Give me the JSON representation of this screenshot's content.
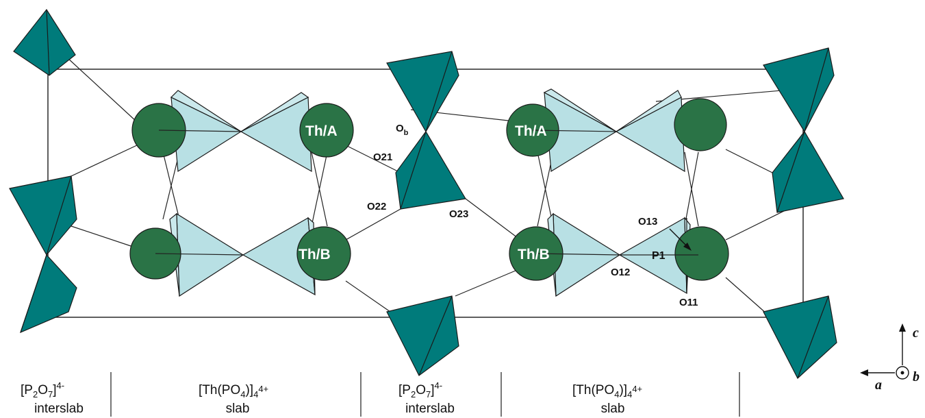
{
  "colors": {
    "pyrophosphate_tetrahedron": "#007b7b",
    "phosphate_tetrahedron": "#b8e0e4",
    "thorium_atom": "#2a7346",
    "outline": "#1a1a1a",
    "atom_label": "#ffffff"
  },
  "atoms": {
    "th_a_left": "Th/A",
    "th_b_left": "Th/B",
    "th_a_right": "Th/A",
    "th_b_right": "Th/B",
    "p1": "P1"
  },
  "oxygen_labels": {
    "ob_main": "O",
    "ob_sub": "b",
    "o21": "O21",
    "o22": "O22",
    "o23": "O23",
    "o13": "O13",
    "o12": "O12",
    "o11": "O11"
  },
  "regions": [
    {
      "line1_main": "[P",
      "line1_sub1": "2",
      "line1_mid": "O",
      "line1_sub2": "7",
      "line1_end": "]",
      "line1_sup": "4-",
      "line2": "interslab"
    },
    {
      "line1_main": "[Th(PO",
      "line1_sub1": "4",
      "line1_mid": ")]",
      "line1_sub2": "4",
      "line1_end": "",
      "line1_sup": "4+",
      "line2": "slab"
    },
    {
      "line1_main": "[P",
      "line1_sub1": "2",
      "line1_mid": "O",
      "line1_sub2": "7",
      "line1_end": "]",
      "line1_sup": "4-",
      "line2": "interslab"
    },
    {
      "line1_main": "[Th(PO",
      "line1_sub1": "4",
      "line1_mid": ")]",
      "line1_sub2": "4",
      "line1_end": "",
      "line1_sup": "4+",
      "line2": "slab"
    }
  ],
  "axes": {
    "c": "c",
    "a": "a",
    "b": "b"
  }
}
